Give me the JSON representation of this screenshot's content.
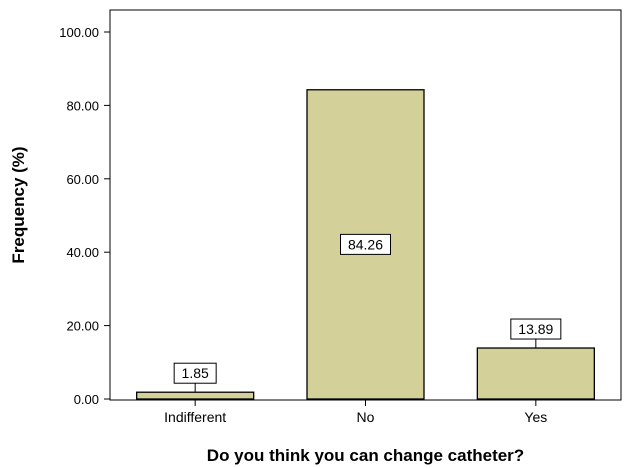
{
  "chart_data": {
    "type": "bar",
    "title": "",
    "xlabel": "Do you think you can change catheter?",
    "ylabel": "Frequency (%)",
    "categories": [
      "Indifferent",
      "No",
      "Yes"
    ],
    "values": [
      1.85,
      84.26,
      13.89
    ],
    "data_labels": [
      "1.85",
      "84.26",
      "13.89"
    ],
    "ylim": [
      0,
      100
    ],
    "yticks": [
      0,
      20,
      40,
      60,
      80,
      100
    ],
    "ytick_labels": [
      "0.00",
      "20.00",
      "40.00",
      "60.00",
      "80.00",
      "100.00"
    ],
    "grid": false,
    "legend": "none",
    "bar_color": "#d4d09a",
    "bar_edge_color": "#000000"
  }
}
